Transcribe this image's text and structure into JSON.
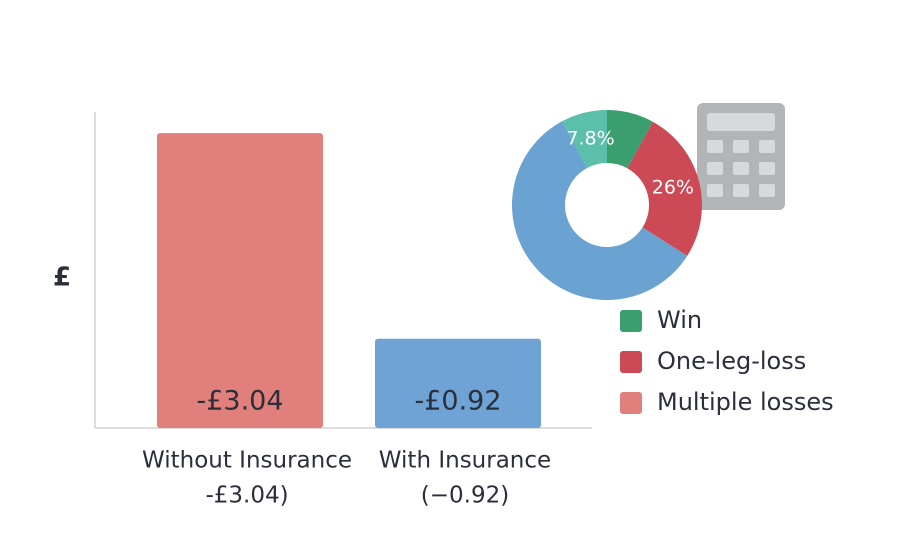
{
  "chart_data": [
    {
      "type": "bar",
      "y_label": "£",
      "categories": [
        "Without Insurance",
        "With Insurance"
      ],
      "category_notes": [
        "-£3.04)",
        "(−0.92)"
      ],
      "values": [
        -3.04,
        -0.92
      ],
      "value_labels": [
        "-£3.04",
        "-£0.92"
      ],
      "colors": [
        "#e07f7b",
        "#6fa3d6"
      ]
    },
    {
      "type": "donut",
      "categories": [
        "Win",
        "One-leg-loss",
        null,
        null
      ],
      "values": [
        8,
        26,
        58.2,
        7.8
      ],
      "value_labels": [
        null,
        "26%",
        null,
        "7.8%"
      ],
      "colors": [
        "#3a9e6e",
        "#cc4a55",
        "#6aa2d2",
        "#5bbfa9"
      ],
      "legend": [
        {
          "name": "Win",
          "color": "#3a9e6e"
        },
        {
          "name": "One-leg-loss",
          "color": "#cc4a55"
        },
        {
          "name": "Multiple losses",
          "color": "#e07f7b"
        }
      ]
    }
  ]
}
